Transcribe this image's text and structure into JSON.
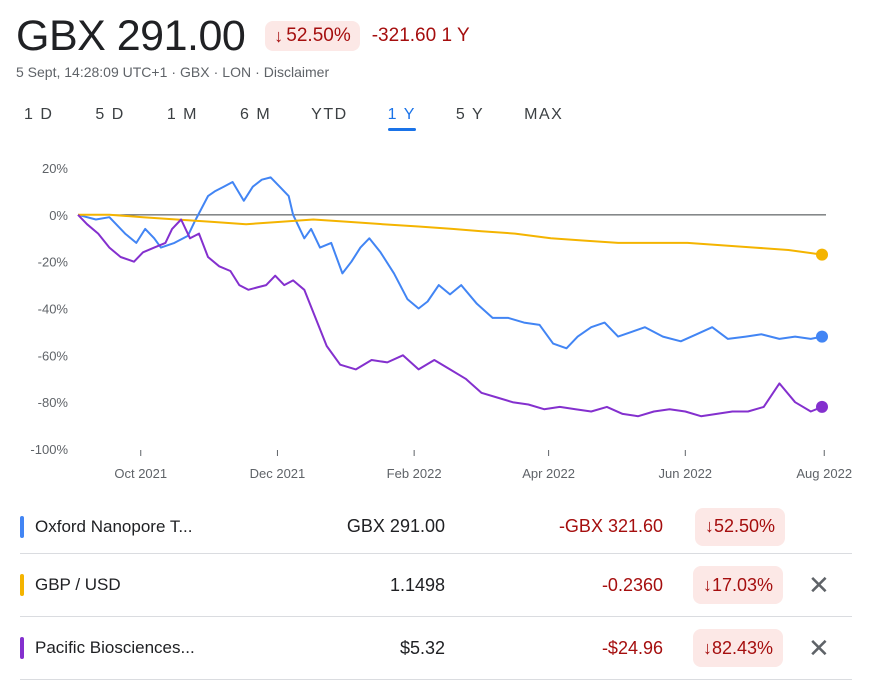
{
  "header": {
    "price": "GBX 291.00",
    "change_pct": "52.50%",
    "change_abs": "-321.60",
    "change_period": "1 Y",
    "timestamp": "5 Sept, 14:28:09 UTC+1",
    "currency": "GBX",
    "exchange": "LON",
    "disclaimer": "Disclaimer"
  },
  "ranges": [
    "1 D",
    "5 D",
    "1 M",
    "6 M",
    "YTD",
    "1 Y",
    "5 Y",
    "MAX"
  ],
  "active_range": "1 Y",
  "chart_data": {
    "type": "line",
    "ylim": [
      -100,
      20
    ],
    "yticks": [
      "20%",
      "0%",
      "-20%",
      "-40%",
      "-60%",
      "-80%",
      "-100%"
    ],
    "xticks": [
      "Oct 2021",
      "Dec 2021",
      "Feb 2022",
      "Apr 2022",
      "Jun 2022",
      "Aug 2022"
    ],
    "x_range_months": [
      "Sep 2021",
      "Sep 2022"
    ],
    "baseline": 0,
    "series": [
      {
        "name": "Oxford Nanopore T...",
        "color": "#4285f4",
        "x": [
          "2021-09-06",
          "2021-09-14",
          "2021-09-20",
          "2021-09-27",
          "2021-10-02",
          "2021-10-06",
          "2021-10-10",
          "2021-10-13",
          "2021-10-19",
          "2021-10-25",
          "2021-10-28",
          "2021-11-03",
          "2021-11-06",
          "2021-11-10",
          "2021-11-14",
          "2021-11-19",
          "2021-11-23",
          "2021-11-27",
          "2021-12-01",
          "2021-12-05",
          "2021-12-09",
          "2021-12-11",
          "2021-12-16",
          "2021-12-19",
          "2021-12-23",
          "2021-12-28",
          "2022-01-02",
          "2022-01-06",
          "2022-01-10",
          "2022-01-14",
          "2022-01-19",
          "2022-01-25",
          "2022-01-31",
          "2022-02-05",
          "2022-02-09",
          "2022-02-14",
          "2022-02-19",
          "2022-02-24",
          "2022-03-03",
          "2022-03-10",
          "2022-03-17",
          "2022-03-24",
          "2022-03-31",
          "2022-04-06",
          "2022-04-12",
          "2022-04-17",
          "2022-04-23",
          "2022-04-29",
          "2022-05-05",
          "2022-05-11",
          "2022-05-17",
          "2022-05-25",
          "2022-06-02",
          "2022-06-09",
          "2022-06-16",
          "2022-06-23",
          "2022-07-01",
          "2022-07-08",
          "2022-07-16",
          "2022-07-23",
          "2022-07-30",
          "2022-08-04"
        ],
        "values": [
          0,
          -2,
          -1,
          -8,
          -12,
          -6,
          -10,
          -14,
          -12,
          -9,
          -3,
          8,
          10,
          12,
          14,
          6,
          12,
          15,
          16,
          12,
          8,
          0,
          -10,
          -6,
          -14,
          -12,
          -25,
          -20,
          -14,
          -10,
          -16,
          -25,
          -36,
          -40,
          -37,
          -30,
          -34,
          -30,
          -38,
          -44,
          -44,
          -46,
          -47,
          -55,
          -57,
          -52,
          -48,
          -46,
          -52,
          -50,
          -48,
          -52,
          -54,
          -51,
          -48,
          -53,
          -52,
          -51,
          -53,
          -52,
          -53,
          -52
        ]
      },
      {
        "name": "GBP / USD",
        "color": "#f4b400",
        "x": [
          "2021-09-06",
          "2021-09-20",
          "2021-10-05",
          "2021-10-20",
          "2021-11-05",
          "2021-11-20",
          "2021-12-05",
          "2021-12-20",
          "2022-01-05",
          "2022-01-20",
          "2022-02-05",
          "2022-02-20",
          "2022-03-05",
          "2022-03-20",
          "2022-04-05",
          "2022-04-20",
          "2022-05-05",
          "2022-05-20",
          "2022-06-05",
          "2022-06-20",
          "2022-07-05",
          "2022-07-20",
          "2022-08-04"
        ],
        "values": [
          0,
          0,
          -1,
          -2,
          -3,
          -4,
          -3,
          -2,
          -3,
          -4,
          -5,
          -6,
          -7,
          -8,
          -10,
          -11,
          -12,
          -12,
          -12,
          -13,
          -14,
          -15,
          -17
        ]
      },
      {
        "name": "Pacific Biosciences...",
        "color": "#8430ce",
        "x": [
          "2021-09-06",
          "2021-09-10",
          "2021-09-15",
          "2021-09-20",
          "2021-09-25",
          "2021-10-01",
          "2021-10-05",
          "2021-10-10",
          "2021-10-15",
          "2021-10-18",
          "2021-10-22",
          "2021-10-26",
          "2021-10-30",
          "2021-11-03",
          "2021-11-08",
          "2021-11-13",
          "2021-11-17",
          "2021-11-21",
          "2021-11-25",
          "2021-11-29",
          "2021-12-03",
          "2021-12-07",
          "2021-12-11",
          "2021-12-16",
          "2021-12-21",
          "2021-12-26",
          "2022-01-01",
          "2022-01-08",
          "2022-01-15",
          "2022-01-22",
          "2022-01-29",
          "2022-02-05",
          "2022-02-12",
          "2022-02-19",
          "2022-02-26",
          "2022-03-05",
          "2022-03-12",
          "2022-03-19",
          "2022-03-26",
          "2022-04-02",
          "2022-04-09",
          "2022-04-16",
          "2022-04-23",
          "2022-04-30",
          "2022-05-07",
          "2022-05-14",
          "2022-05-21",
          "2022-05-28",
          "2022-06-04",
          "2022-06-11",
          "2022-06-18",
          "2022-06-25",
          "2022-07-02",
          "2022-07-09",
          "2022-07-16",
          "2022-07-23",
          "2022-07-30",
          "2022-08-04"
        ],
        "values": [
          0,
          -4,
          -8,
          -14,
          -18,
          -20,
          -16,
          -14,
          -12,
          -6,
          -2,
          -10,
          -8,
          -18,
          -22,
          -24,
          -30,
          -32,
          -31,
          -30,
          -26,
          -30,
          -28,
          -32,
          -44,
          -56,
          -64,
          -66,
          -62,
          -63,
          -60,
          -66,
          -62,
          -66,
          -70,
          -76,
          -78,
          -80,
          -81,
          -83,
          -82,
          -83,
          -84,
          -82,
          -85,
          -86,
          -84,
          -83,
          -84,
          -86,
          -85,
          -84,
          -84,
          -82,
          -72,
          -80,
          -84,
          -82
        ]
      }
    ]
  },
  "table": [
    {
      "name": "Oxford Nanopore T...",
      "color": "#4285f4",
      "price": "GBX 291.00",
      "change": "-GBX 321.60",
      "pct": "52.50%",
      "removable": false
    },
    {
      "name": "GBP / USD",
      "color": "#f4b400",
      "price": "1.1498",
      "change": "-0.2360",
      "pct": "17.03%",
      "removable": true
    },
    {
      "name": "Pacific Biosciences...",
      "color": "#8430ce",
      "price": "$5.32",
      "change": "-$24.96",
      "pct": "82.43%",
      "removable": true
    }
  ]
}
